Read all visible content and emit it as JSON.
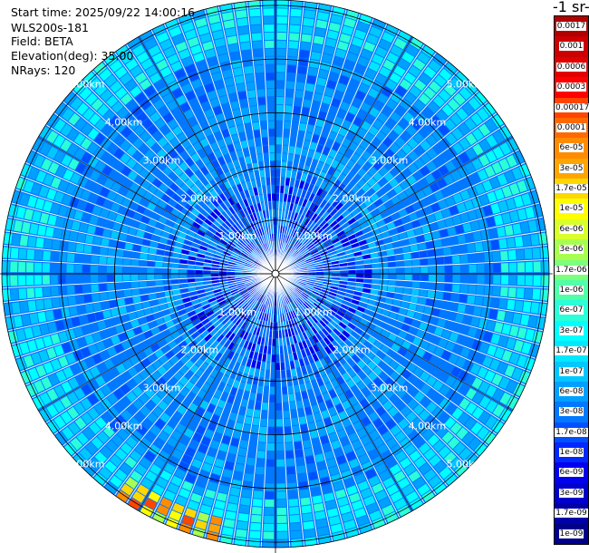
{
  "header": {
    "start_time": "Start time: 2025/09/22 14:00:16",
    "instrument": "WLS200s-181",
    "field": "Field: BETA",
    "elevation": "Elevation(deg): 35.00",
    "nrays": "NRays: 120"
  },
  "colorbar": {
    "title": "-1 sr-",
    "labels": [
      "0.0017",
      "0.001",
      "0.0006",
      "0.0003",
      "0.00017",
      "0.0001",
      "6e-05",
      "3e-05",
      "1.7e-05",
      "1e-05",
      "6e-06",
      "3e-06",
      "1.7e-06",
      "1e-06",
      "6e-07",
      "3e-07",
      "1.7e-07",
      "1e-07",
      "6e-08",
      "3e-08",
      "1.7e-08",
      "1e-08",
      "6e-09",
      "3e-09",
      "1.7e-09",
      "1e-09"
    ],
    "colors": [
      "#b00000",
      "#cc0000",
      "#e00000",
      "#ff0000",
      "#ff4500",
      "#ff6a00",
      "#ff8c00",
      "#ffa500",
      "#ffd700",
      "#ffff00",
      "#d8ff2a",
      "#a8ff50",
      "#7cff7c",
      "#50ffa8",
      "#2affd8",
      "#00ffff",
      "#00e8ff",
      "#00c8ff",
      "#00a0ff",
      "#0078ff",
      "#0050ff",
      "#0028ff",
      "#0000ee",
      "#0000cc",
      "#0000a8",
      "#00008b"
    ]
  },
  "chart_data": {
    "type": "heatmap",
    "projection": "polar PPI",
    "range_rings_km": [
      1,
      2,
      3,
      4,
      5
    ],
    "ring_labels": [
      "1.00km",
      "2.00km",
      "3.00km",
      "4.00km",
      "5.00km"
    ],
    "nrays": 120,
    "field": "BETA",
    "elevation_deg": 35.0,
    "colorscale": "log, 1e-09 to 0.0017",
    "background_value_range": [
      1e-08,
      1e-07
    ],
    "outer_edge_value_range": [
      1e-07,
      3e-07
    ],
    "high_values": {
      "direction": "south-southwest",
      "range_km": [
        5.0,
        5.3
      ],
      "value_range": [
        3e-06,
        0.0003
      ]
    }
  }
}
